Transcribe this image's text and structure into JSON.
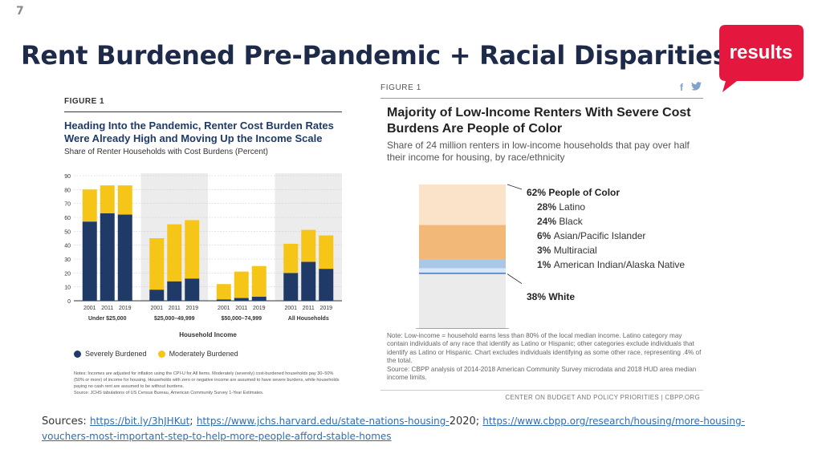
{
  "slide": {
    "number": "7",
    "title": "Rent Burdened Pre-Pandemic + Racial Disparities",
    "logo_text": "results",
    "logo_color": "#e4173e"
  },
  "figure_left": {
    "label": "FIGURE 1",
    "title": "Heading Into the Pandemic, Renter Cost Burden Rates Were Already High and Moving Up the Income Scale",
    "subtitle": "Share of Renter Households with Cost Burdens (Percent)",
    "xlabel": "Household Income",
    "legend": [
      {
        "label": "Severely Burdened",
        "color": "#1f3a66"
      },
      {
        "label": "Moderately Burdened",
        "color": "#f5c518"
      }
    ],
    "notes": "Notes: Incomes are adjusted for inflation using the CPI-U for All Items. Moderately (severely) cost-burdened households pay 30–50% (50% or more) of income for housing. Households with zero or negative income are assumed to have severe burdens, while households paying no cash rent are assumed to be without burdens.",
    "source": "Source: JCHS tabulations of US Census Bureau, American Community Survey 1-Year Estimates."
  },
  "figure_right": {
    "label": "FIGURE 1",
    "social": [
      "f",
      "t"
    ],
    "title": "Majority of Low-Income Renters With Severe Cost Burdens Are People of Color",
    "subtitle": "Share of 24 million renters in low-income households that pay over half their income for housing, by race/ethnicity",
    "note": "Note: Low-income = household earns less than 80% of the local median income. Latino category may contain individuals of any race that identify as Latino or Hispanic; other categories exclude individuals that identify as Latino or Hispanic. Chart excludes individuals identifying as some other race, representing .4% of the total.",
    "source": "Source: CBPP analysis of 2014-2018 American Community Survey microdata and 2018 HUD area median income limits.",
    "credit": "CENTER ON BUDGET AND POLICY PRIORITIES | CBPP.ORG"
  },
  "chart_data": [
    {
      "type": "bar",
      "stacked": true,
      "title": "Heading Into the Pandemic, Renter Cost Burden Rates Were Already High and Moving Up the Income Scale",
      "ylabel": "Share of Renter Households with Cost Burdens (Percent)",
      "xlabel": "Household Income",
      "ylim": [
        0,
        90
      ],
      "yticks": [
        0,
        10,
        20,
        30,
        40,
        50,
        60,
        70,
        80,
        90
      ],
      "groups": [
        {
          "label": "Under $25,000",
          "shaded": false,
          "years": [
            "2001",
            "2011",
            "2019"
          ],
          "severe": [
            57,
            63,
            62
          ],
          "moderate": [
            23,
            20,
            21
          ]
        },
        {
          "label": "$25,000–49,999",
          "shaded": true,
          "years": [
            "2001",
            "2011",
            "2019"
          ],
          "severe": [
            8,
            14,
            16
          ],
          "moderate": [
            37,
            41,
            42
          ]
        },
        {
          "label": "$50,000–74,999",
          "shaded": false,
          "years": [
            "2001",
            "2011",
            "2019"
          ],
          "severe": [
            1,
            2,
            3
          ],
          "moderate": [
            11,
            19,
            22
          ]
        },
        {
          "label": "All Households",
          "shaded": true,
          "years": [
            "2001",
            "2011",
            "2019"
          ],
          "severe": [
            20,
            28,
            23
          ],
          "moderate": [
            21,
            23,
            24
          ]
        }
      ],
      "series": [
        {
          "name": "Severely Burdened",
          "color": "#1f3a66"
        },
        {
          "name": "Moderately Burdened",
          "color": "#f5c518"
        }
      ]
    },
    {
      "type": "bar",
      "stacked": true,
      "orientation": "vertical-single",
      "title": "Majority of Low-Income Renters With Severe Cost Burdens Are People of Color",
      "segments": [
        {
          "name": "White",
          "value": 38,
          "color": "#ebebeb",
          "label": "38% White"
        },
        {
          "name": "American Indian/Alaska Native",
          "value": 1,
          "color": "#4f7fbf",
          "pct": "1%",
          "label": "American Indian/Alaska Native"
        },
        {
          "name": "Multiracial",
          "value": 3,
          "color": "#d9e6f3",
          "pct": "3%",
          "label": "Multiracial"
        },
        {
          "name": "Asian/Pacific Islander",
          "value": 6,
          "color": "#a9c7e6",
          "pct": "6%",
          "label": "Asian/Pacific Islander"
        },
        {
          "name": "Black",
          "value": 24,
          "color": "#f1b878",
          "pct": "24%",
          "label": "Black"
        },
        {
          "name": "Latino",
          "value": 28,
          "color": "#fbe3c9",
          "pct": "28%",
          "label": "Latino"
        }
      ],
      "group_label": "62% People of Color"
    }
  ],
  "sources": {
    "prefix": "Sources: ",
    "link1": "https://bit.ly/3hJHKut",
    "sep1": "; ",
    "link2": "https://www.jchs.harvard.edu/state-nations-housing-",
    "link2_suffix": "2020",
    "sep2": "; ",
    "link3": "https://www.cbpp.org/research/housing/more-housing-vouchers-most-important-step-to-help-more-people-afford-stable-homes"
  }
}
